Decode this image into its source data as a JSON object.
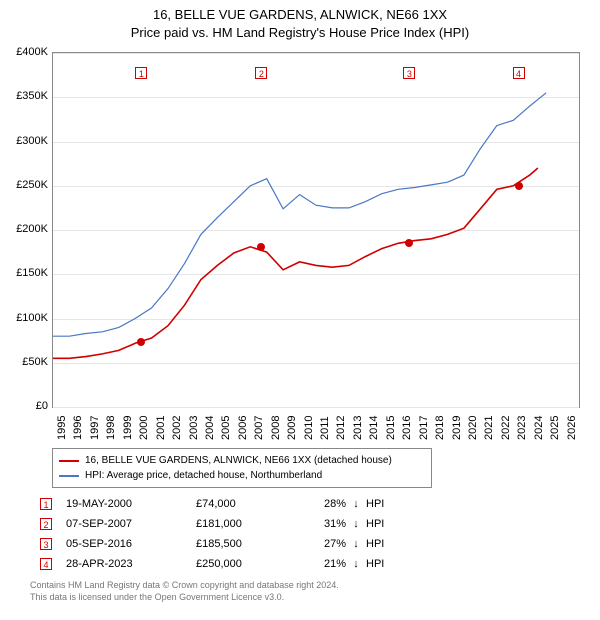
{
  "title_line1": "16, BELLE VUE GARDENS, ALNWICK, NE66 1XX",
  "title_line2": "Price paid vs. HM Land Registry's House Price Index (HPI)",
  "chart": {
    "x_min": 1995,
    "x_max": 2027,
    "y_min": 0,
    "y_max": 400000,
    "y_ticks": [
      0,
      50000,
      100000,
      150000,
      200000,
      250000,
      300000,
      350000,
      400000
    ],
    "y_tick_labels": [
      "£0",
      "£50K",
      "£100K",
      "£150K",
      "£200K",
      "£250K",
      "£300K",
      "£350K",
      "£400K"
    ],
    "x_ticks": [
      1995,
      1996,
      1997,
      1998,
      1999,
      2000,
      2001,
      2002,
      2003,
      2004,
      2005,
      2006,
      2007,
      2008,
      2009,
      2010,
      2011,
      2012,
      2013,
      2014,
      2015,
      2016,
      2017,
      2018,
      2019,
      2020,
      2021,
      2022,
      2023,
      2024,
      2025,
      2026
    ],
    "grid_color": "#e6e6e6",
    "axis_color": "#888888",
    "background_color": "#ffffff",
    "series": [
      {
        "name": "16, BELLE VUE GARDENS, ALNWICK, NE66 1XX (detached house)",
        "color": "#d00000",
        "width": 1.6,
        "points": [
          [
            1995,
            55000
          ],
          [
            1996,
            55000
          ],
          [
            1997,
            57000
          ],
          [
            1998,
            60000
          ],
          [
            1999,
            64000
          ],
          [
            2000,
            72000
          ],
          [
            2001,
            78000
          ],
          [
            2002,
            92000
          ],
          [
            2003,
            115000
          ],
          [
            2004,
            144000
          ],
          [
            2005,
            160000
          ],
          [
            2006,
            174000
          ],
          [
            2007,
            181000
          ],
          [
            2008,
            175000
          ],
          [
            2009,
            155000
          ],
          [
            2010,
            164000
          ],
          [
            2011,
            160000
          ],
          [
            2012,
            158000
          ],
          [
            2013,
            160000
          ],
          [
            2014,
            170000
          ],
          [
            2015,
            179000
          ],
          [
            2016,
            185000
          ],
          [
            2017,
            188000
          ],
          [
            2018,
            190000
          ],
          [
            2019,
            195000
          ],
          [
            2020,
            202000
          ],
          [
            2021,
            224000
          ],
          [
            2022,
            246000
          ],
          [
            2023,
            250000
          ],
          [
            2024,
            262000
          ],
          [
            2024.5,
            270000
          ]
        ]
      },
      {
        "name": "HPI: Average price, detached house, Northumberland",
        "color": "#4a78c4",
        "width": 1.2,
        "points": [
          [
            1995,
            80000
          ],
          [
            1996,
            80000
          ],
          [
            1997,
            83000
          ],
          [
            1998,
            85000
          ],
          [
            1999,
            90000
          ],
          [
            2000,
            100000
          ],
          [
            2001,
            112000
          ],
          [
            2002,
            134000
          ],
          [
            2003,
            162000
          ],
          [
            2004,
            195000
          ],
          [
            2005,
            214000
          ],
          [
            2006,
            232000
          ],
          [
            2007,
            250000
          ],
          [
            2008,
            258000
          ],
          [
            2009,
            224000
          ],
          [
            2010,
            240000
          ],
          [
            2011,
            228000
          ],
          [
            2012,
            225000
          ],
          [
            2013,
            225000
          ],
          [
            2014,
            232000
          ],
          [
            2015,
            241000
          ],
          [
            2016,
            246000
          ],
          [
            2017,
            248000
          ],
          [
            2018,
            251000
          ],
          [
            2019,
            254000
          ],
          [
            2020,
            262000
          ],
          [
            2021,
            292000
          ],
          [
            2022,
            318000
          ],
          [
            2023,
            324000
          ],
          [
            2024,
            340000
          ],
          [
            2025,
            355000
          ]
        ]
      }
    ],
    "sale_markers": [
      {
        "label": "1",
        "x": 2000.38,
        "y": 74000,
        "color": "#d00000"
      },
      {
        "label": "2",
        "x": 2007.68,
        "y": 181000,
        "color": "#d00000"
      },
      {
        "label": "3",
        "x": 2016.68,
        "y": 185500,
        "color": "#d00000"
      },
      {
        "label": "4",
        "x": 2023.32,
        "y": 250000,
        "color": "#d00000"
      }
    ],
    "marker_box_top_offset": 14
  },
  "legend": [
    {
      "color": "#d00000",
      "label": "16, BELLE VUE GARDENS, ALNWICK, NE66 1XX (detached house)"
    },
    {
      "color": "#4a78c4",
      "label": "HPI: Average price, detached house, Northumberland"
    }
  ],
  "sales": [
    {
      "n": "1",
      "date": "19-MAY-2000",
      "price": "£74,000",
      "diff": "28%",
      "arrow": "↓",
      "vs": "HPI"
    },
    {
      "n": "2",
      "date": "07-SEP-2007",
      "price": "£181,000",
      "diff": "31%",
      "arrow": "↓",
      "vs": "HPI"
    },
    {
      "n": "3",
      "date": "05-SEP-2016",
      "price": "£185,500",
      "diff": "27%",
      "arrow": "↓",
      "vs": "HPI"
    },
    {
      "n": "4",
      "date": "28-APR-2023",
      "price": "£250,000",
      "diff": "21%",
      "arrow": "↓",
      "vs": "HPI"
    }
  ],
  "attribution_line1": "Contains HM Land Registry data © Crown copyright and database right 2024.",
  "attribution_line2": "This data is licensed under the Open Government Licence v3.0."
}
